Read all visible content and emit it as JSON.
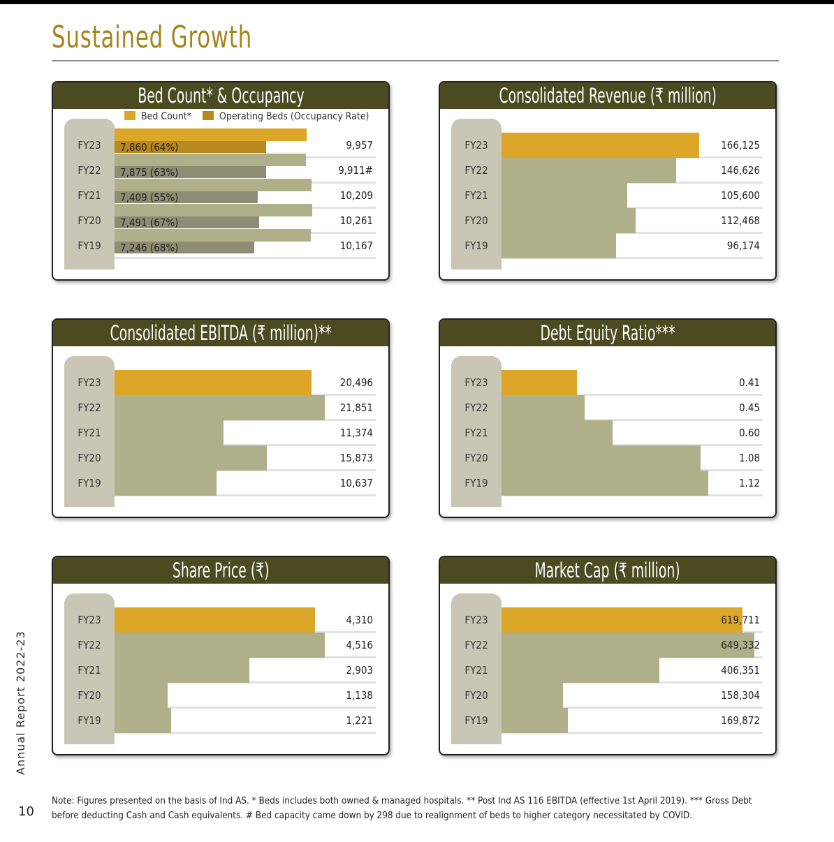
{
  "page": {
    "title": "Sustained Growth",
    "side_label": "Annual Report 2022-23",
    "page_number": "10",
    "footnote": "Note: Figures presented on the basis of Ind AS. * Beds includes both owned & managed hospitals. ** Post Ind AS 116 EBITDA (effective 1st April 2019). *** Gross Debt before deducting Cash and Cash equivalents. # Bed capacity came down by 298 due to realignment of beds to higher category necessitated by COVID."
  },
  "colors": {
    "header": "#4b4a20",
    "current_bar": "#dca628",
    "past_bar": "#afaf8a",
    "occupancy_bar": "#8e8d74",
    "occupancy_current": "#b8891f",
    "year_column": "#cac6b6",
    "title": "#a3851c"
  },
  "chart_data": [
    {
      "id": "beds",
      "type": "bar",
      "orientation": "horizontal",
      "title": "Bed Count* & Occupancy",
      "legend": [
        "Bed Count*",
        "Operating Beds (Occupancy Rate)"
      ],
      "legend_placement": "top",
      "categories": [
        "FY23",
        "FY22",
        "FY21",
        "FY20",
        "FY19"
      ],
      "series": [
        {
          "name": "Bed Count*",
          "values": [
            9957,
            9911,
            10209,
            10261,
            10167
          ],
          "labels": [
            "9,957",
            "9,911#",
            "10,209",
            "10,261",
            "10,167"
          ]
        },
        {
          "name": "Operating Beds (Occupancy Rate)",
          "values": [
            7860,
            7875,
            7409,
            7491,
            7246
          ],
          "labels": [
            "7,860 (64%)",
            "7,875 (63%)",
            "7,409 (55%)",
            "7,491 (67%)",
            "7,246 (68%)"
          ]
        }
      ],
      "xlim": [
        0,
        13400
      ]
    },
    {
      "id": "revenue",
      "type": "bar",
      "orientation": "horizontal",
      "title": "Consolidated Revenue (₹ million)",
      "categories": [
        "FY23",
        "FY22",
        "FY21",
        "FY20",
        "FY19"
      ],
      "values": [
        166125,
        146626,
        105600,
        112468,
        96174
      ],
      "labels": [
        "166,125",
        "146,626",
        "105,600",
        "112,468",
        "96,174"
      ],
      "xlim": [
        0,
        217000
      ]
    },
    {
      "id": "ebitda",
      "type": "bar",
      "orientation": "horizontal",
      "title": "Consolidated EBITDA (₹ million)**",
      "categories": [
        "FY23",
        "FY22",
        "FY21",
        "FY20",
        "FY19"
      ],
      "values": [
        20496,
        21851,
        11374,
        15873,
        10637
      ],
      "labels": [
        "20,496",
        "21,851",
        "11,374",
        "15,873",
        "10,637"
      ],
      "xlim": [
        0,
        26900
      ]
    },
    {
      "id": "debt",
      "type": "bar",
      "orientation": "horizontal",
      "title": "Debt Equity Ratio***",
      "categories": [
        "FY23",
        "FY22",
        "FY21",
        "FY20",
        "FY19"
      ],
      "values": [
        0.41,
        0.45,
        0.6,
        1.08,
        1.12
      ],
      "labels": [
        "0.41",
        "0.45",
        "0.60",
        "1.08",
        "1.12"
      ],
      "xlim": [
        0,
        1.4
      ]
    },
    {
      "id": "share",
      "type": "bar",
      "orientation": "horizontal",
      "title": "Share Price (₹)",
      "categories": [
        "FY23",
        "FY22",
        "FY21",
        "FY20",
        "FY19"
      ],
      "values": [
        4310,
        4516,
        2903,
        1138,
        1221
      ],
      "labels": [
        "4,310",
        "4,516",
        "2,903",
        "1,138",
        "1,221"
      ],
      "xlim": [
        0,
        5560
      ]
    },
    {
      "id": "mcap",
      "type": "bar",
      "orientation": "horizontal",
      "title": "Market Cap (₹ million)",
      "categories": [
        "FY23",
        "FY22",
        "FY21",
        "FY20",
        "FY19"
      ],
      "values": [
        619711,
        649332,
        406351,
        158304,
        169872
      ],
      "labels": [
        "619,711",
        "649,332",
        "406,351",
        "158,304",
        "169,872"
      ],
      "xlim": [
        0,
        664000
      ]
    }
  ]
}
